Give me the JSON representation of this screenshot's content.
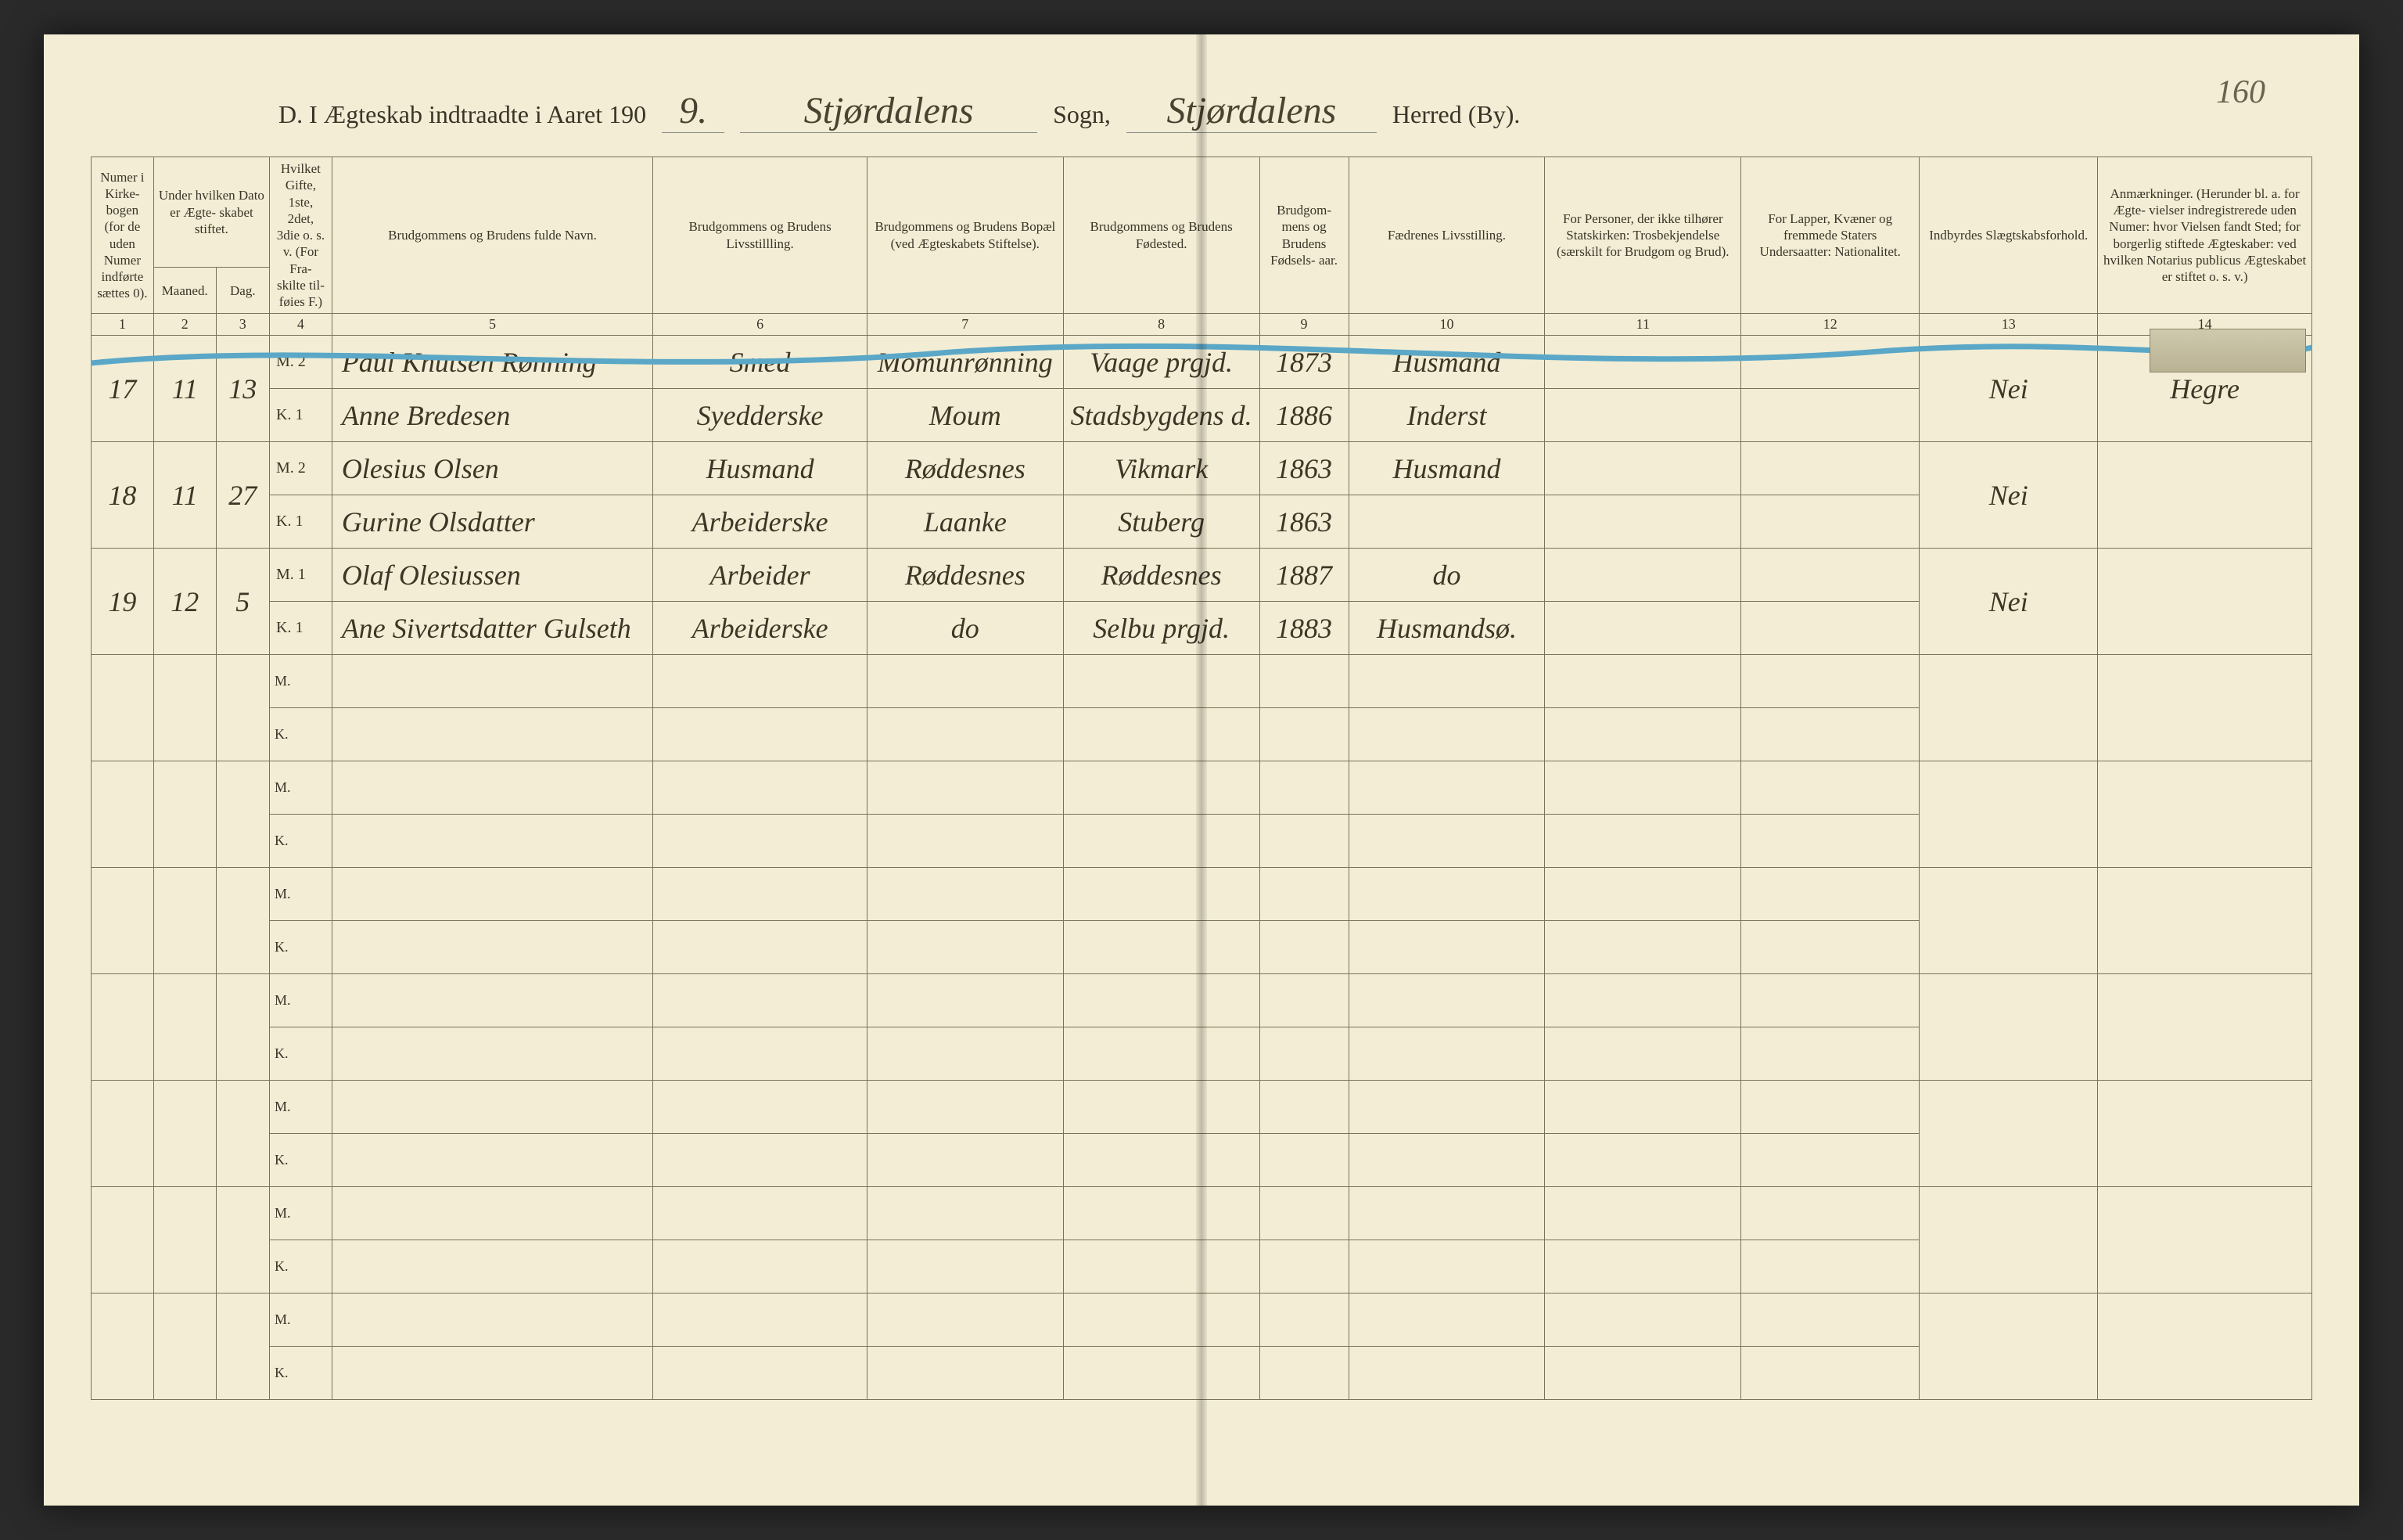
{
  "page_number": "160",
  "header": {
    "printed_prefix": "D.   I Ægteskab indtraadte i Aaret 190",
    "year_suffix": "9.",
    "parish_label": "Sogn,",
    "district_label": "Herred (By).",
    "parish": "Stjørdalens",
    "district": "Stjørdalens"
  },
  "columns": [
    "Numer i Kirke- bogen (for de uden Numer indførte sættes 0).",
    "Under hvilken Dato er Ægte- skabet stiftet.",
    "",
    "Hvilket Gifte, 1ste, 2det, 3die o. s. v. (For Fra- skilte til- føies F.)",
    "Brudgommens og Brudens fulde Navn.",
    "Brudgommens og Brudens Livsstillling.",
    "Brudgommens og Brudens Bopæl (ved Ægteskabets Stiftelse).",
    "Brudgommens og Brudens Fødested.",
    "Brudgom- mens og Brudens Fødsels- aar.",
    "Fædrenes Livsstilling.",
    "For Personer, der ikke tilhører Statskirken: Trosbekjendelse (særskilt for Brudgom og Brud).",
    "For Lapper, Kvæner og fremmede Staters Undersaatter: Nationalitet.",
    "Indbyrdes Slægtskabsforhold.",
    "Anmærkninger. (Herunder bl. a. for Ægte- vielser indregistrerede uden Numer: hvor Vielsen fandt Sted; for borgerlig stiftede Ægteskaber: ved hvilken Notarius publicus Ægteskabet er stiftet o. s. v.)"
  ],
  "sub_date": {
    "month": "Maaned.",
    "day": "Dag."
  },
  "col_numbers": [
    "1",
    "2",
    "3",
    "4",
    "5",
    "6",
    "7",
    "8",
    "9",
    "10",
    "11",
    "12",
    "13",
    "14"
  ],
  "mk": {
    "m": "M.",
    "k": "K."
  },
  "entries": [
    {
      "num": "17",
      "month": "11",
      "day": "13",
      "groom": {
        "marriage": "2",
        "name": "Paul Knutsen Rønning",
        "occupation": "Smed",
        "residence": "Momunrønning",
        "birthplace": "Vaage prgjd.",
        "birthyear": "1873",
        "father": "Husmand"
      },
      "bride": {
        "marriage": "1",
        "name": "Anne Bredesen",
        "occupation": "Syedderske",
        "residence": "Moum",
        "birthplace": "Stadsbygdens d.",
        "birthyear": "1886",
        "father": "Inderst"
      },
      "kinship": "Nei",
      "remarks": "Hegre"
    },
    {
      "num": "18",
      "month": "11",
      "day": "27",
      "groom": {
        "marriage": "2",
        "name": "Olesius Olsen",
        "occupation": "Husmand",
        "residence": "Røddesnes",
        "birthplace": "Vikmark",
        "birthyear": "1863",
        "father": "Husmand"
      },
      "bride": {
        "marriage": "1",
        "name": "Gurine Olsdatter",
        "occupation": "Arbeiderske",
        "residence": "Laanke",
        "birthplace": "Stuberg",
        "birthyear": "1863",
        "father": ""
      },
      "kinship": "Nei",
      "remarks": ""
    },
    {
      "num": "19",
      "month": "12",
      "day": "5",
      "groom": {
        "marriage": "1",
        "name": "Olaf Olesiussen",
        "occupation": "Arbeider",
        "residence": "Røddesnes",
        "birthplace": "Røddesnes",
        "birthyear": "1887",
        "father": "do"
      },
      "bride": {
        "marriage": "1",
        "name": "Ane Sivertsdatter Gulseth",
        "occupation": "Arbeiderske",
        "residence": "do",
        "birthplace": "Selbu prgjd.",
        "birthyear": "1883",
        "father": "Husmandsø."
      },
      "kinship": "Nei",
      "remarks": ""
    }
  ],
  "empty_pairs": 7,
  "colors": {
    "paper": "#f2edd4",
    "ink": "#3a3428",
    "handwriting": "#3d3626",
    "rule": "#7a7258",
    "blue_pencil": "#5aa7c7"
  }
}
